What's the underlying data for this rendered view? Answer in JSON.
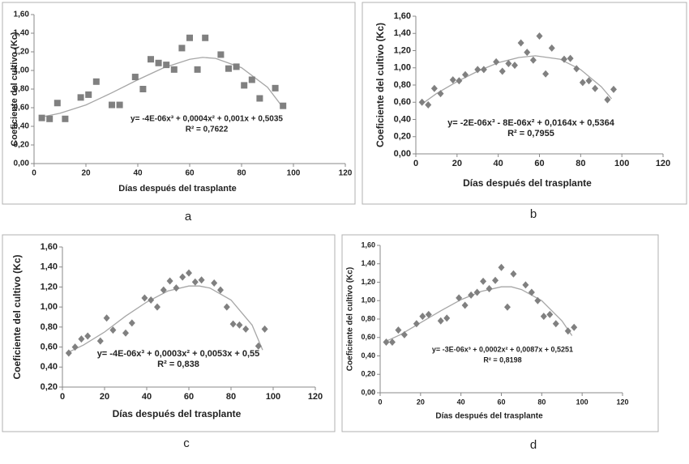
{
  "chart_data": [
    {
      "type": "scatter",
      "label": "a",
      "ylabel": "Coeficiente del cultivo (Kc)",
      "xlabel": "Días después del trasplante",
      "equation": "y= -4E-06x³ + 0,0004x² + 0,001x + 0,5035",
      "r2": "R² = 0,7622",
      "marker": "square",
      "color": "#808080",
      "fit_color": "#a6a6a6",
      "x": [
        3,
        6,
        9,
        12,
        18,
        21,
        24,
        30,
        33,
        39,
        42,
        45,
        48,
        51,
        54,
        57,
        60,
        63,
        66,
        72,
        75,
        78,
        81,
        84,
        87,
        93,
        96
      ],
      "values": [
        0.49,
        0.48,
        0.65,
        0.48,
        0.71,
        0.74,
        0.88,
        0.63,
        0.63,
        0.93,
        0.8,
        1.12,
        1.08,
        1.06,
        1.01,
        1.24,
        1.35,
        1.01,
        1.35,
        1.17,
        1.02,
        1.04,
        0.84,
        0.9,
        0.7,
        0.81,
        0.62
      ],
      "fit": {
        "x": [
          3,
          10,
          20,
          30,
          40,
          50,
          60,
          65,
          70,
          80,
          90,
          96
        ],
        "values": [
          0.5,
          0.54,
          0.63,
          0.76,
          0.9,
          1.03,
          1.12,
          1.14,
          1.13,
          1.03,
          0.82,
          0.6
        ]
      },
      "xlim": [
        0,
        120
      ],
      "xticks": [
        0,
        20,
        40,
        60,
        80,
        100,
        120
      ],
      "ylim": [
        0,
        1.6
      ],
      "yticks": [
        {
          "value": 0,
          "label": "0,00"
        },
        {
          "value": 0.2,
          "label": "0,20"
        },
        {
          "value": 0.4,
          "label": "0,40"
        },
        {
          "value": 0.6,
          "label": "0,60"
        },
        {
          "value": 0.8,
          "label": "0,80"
        },
        {
          "value": 1,
          "label": "1,00"
        },
        {
          "value": 1.2,
          "label": "1,20"
        },
        {
          "value": 1.4,
          "label": "1,40"
        },
        {
          "value": 1.6,
          "label": "1,60"
        }
      ]
    },
    {
      "type": "scatter",
      "label": "b",
      "ylabel": "Coeficiente del cultivo (Kc)",
      "xlabel": "Días después del trasplante",
      "equation": "y= -2E-06x³ - 8E-06x² + 0,0164x + 0,5364",
      "r2": "R² = 0,7955",
      "marker": "diamond",
      "color": "#808080",
      "fit_color": "#a6a6a6",
      "x": [
        3,
        6,
        9,
        12,
        18,
        21,
        24,
        30,
        33,
        39,
        42,
        45,
        48,
        51,
        54,
        57,
        60,
        63,
        66,
        72,
        75,
        78,
        81,
        84,
        87,
        93,
        96
      ],
      "values": [
        0.6,
        0.57,
        0.76,
        0.7,
        0.86,
        0.85,
        0.92,
        0.98,
        0.98,
        1.07,
        0.96,
        1.05,
        1.03,
        1.29,
        1.18,
        1.09,
        1.37,
        0.93,
        1.23,
        1.1,
        1.11,
        0.99,
        0.83,
        0.85,
        0.76,
        0.63,
        0.75
      ],
      "fit": {
        "x": [
          3,
          10,
          20,
          30,
          40,
          50,
          58,
          70,
          80,
          90,
          95
        ],
        "values": [
          0.58,
          0.7,
          0.84,
          0.96,
          1.06,
          1.12,
          1.14,
          1.1,
          0.98,
          0.78,
          0.64
        ]
      },
      "xlim": [
        0,
        120
      ],
      "xticks": [
        0,
        20,
        40,
        60,
        80,
        100,
        120
      ],
      "ylim": [
        0,
        1.6
      ],
      "yticks": [
        {
          "value": 0,
          "label": "0,00"
        },
        {
          "value": 0.2,
          "label": "0,20"
        },
        {
          "value": 0.4,
          "label": "0,40"
        },
        {
          "value": 0.6,
          "label": "0,60"
        },
        {
          "value": 0.8,
          "label": "0,80"
        },
        {
          "value": 1,
          "label": "1,00"
        },
        {
          "value": 1.2,
          "label": "1,20"
        },
        {
          "value": 1.4,
          "label": "1,40"
        },
        {
          "value": 1.6,
          "label": "1,60"
        }
      ]
    },
    {
      "type": "scatter",
      "label": "c",
      "ylabel": "Coeficiente del cultivo (Kc)",
      "xlabel": "Días después del trasplante",
      "equation": "y= -4E-06x³ + 0,0003x² + 0,0053x + 0,55",
      "r2": "R² = 0,838",
      "marker": "diamond",
      "color": "#808080",
      "fit_color": "#a6a6a6",
      "x": [
        3,
        6,
        9,
        12,
        18,
        21,
        24,
        30,
        33,
        39,
        42,
        45,
        48,
        51,
        54,
        57,
        60,
        63,
        66,
        72,
        75,
        78,
        81,
        84,
        87,
        93,
        96
      ],
      "values": [
        0.54,
        0.6,
        0.68,
        0.71,
        0.66,
        0.89,
        0.77,
        0.74,
        0.84,
        1.09,
        1.07,
        1.0,
        1.17,
        1.26,
        1.19,
        1.3,
        1.34,
        1.25,
        1.27,
        1.24,
        1.17,
        1.0,
        0.83,
        0.82,
        0.78,
        0.61,
        0.78
      ],
      "fit": {
        "x": [
          3,
          10,
          20,
          30,
          40,
          50,
          60,
          65,
          70,
          80,
          90,
          95
        ],
        "values": [
          0.55,
          0.62,
          0.75,
          0.91,
          1.05,
          1.16,
          1.21,
          1.21,
          1.19,
          1.07,
          0.82,
          0.57
        ]
      },
      "xlim": [
        0,
        120
      ],
      "xticks": [
        0,
        20,
        40,
        60,
        80,
        100,
        120
      ],
      "ylim": [
        0.2,
        1.6
      ],
      "yticks": [
        {
          "value": 0.2,
          "label": "0,20"
        },
        {
          "value": 0.4,
          "label": "0,40"
        },
        {
          "value": 0.6,
          "label": "0,60"
        },
        {
          "value": 0.8,
          "label": "0,80"
        },
        {
          "value": 1,
          "label": "1,00"
        },
        {
          "value": 1.2,
          "label": "1,20"
        },
        {
          "value": 1.4,
          "label": "1,40"
        },
        {
          "value": 1.6,
          "label": "1,60"
        }
      ]
    },
    {
      "type": "scatter",
      "label": "d",
      "ylabel": "Coeficiente del cultivo (Kc)",
      "xlabel": "Días después del trasplante",
      "equation": "y= -3E-06x³ + 0,0002x² + 0,0087x + 0,5251",
      "r2": "R² = 0,8198",
      "marker": "diamond",
      "color": "#808080",
      "fit_color": "#a6a6a6",
      "x": [
        3,
        6,
        9,
        12,
        18,
        21,
        24,
        30,
        33,
        39,
        42,
        45,
        48,
        51,
        54,
        57,
        60,
        63,
        66,
        72,
        75,
        78,
        81,
        84,
        87,
        93,
        96
      ],
      "values": [
        0.55,
        0.55,
        0.68,
        0.63,
        0.75,
        0.83,
        0.85,
        0.78,
        0.81,
        1.03,
        0.95,
        1.06,
        1.09,
        1.21,
        1.13,
        1.22,
        1.36,
        0.93,
        1.29,
        1.17,
        1.09,
        1.0,
        0.83,
        0.85,
        0.75,
        0.67,
        0.71
      ],
      "fit": {
        "x": [
          3,
          10,
          20,
          30,
          40,
          50,
          60,
          65,
          70,
          80,
          90,
          95
        ],
        "values": [
          0.56,
          0.63,
          0.76,
          0.89,
          1.01,
          1.1,
          1.15,
          1.15,
          1.12,
          1.0,
          0.78,
          0.62
        ]
      },
      "xlim": [
        0,
        120
      ],
      "xticks": [
        0,
        20,
        40,
        60,
        80,
        100,
        120
      ],
      "ylim": [
        0,
        1.6
      ],
      "yticks": [
        {
          "value": 0,
          "label": "0,00"
        },
        {
          "value": 0.2,
          "label": "0,20"
        },
        {
          "value": 0.4,
          "label": "0,40"
        },
        {
          "value": 0.6,
          "label": "0,60"
        },
        {
          "value": 0.8,
          "label": "0,80"
        },
        {
          "value": 1,
          "label": "1,00"
        },
        {
          "value": 1.2,
          "label": "1,20"
        },
        {
          "value": 1.4,
          "label": "1,40"
        },
        {
          "value": 1.6,
          "label": "1,60"
        }
      ]
    }
  ]
}
